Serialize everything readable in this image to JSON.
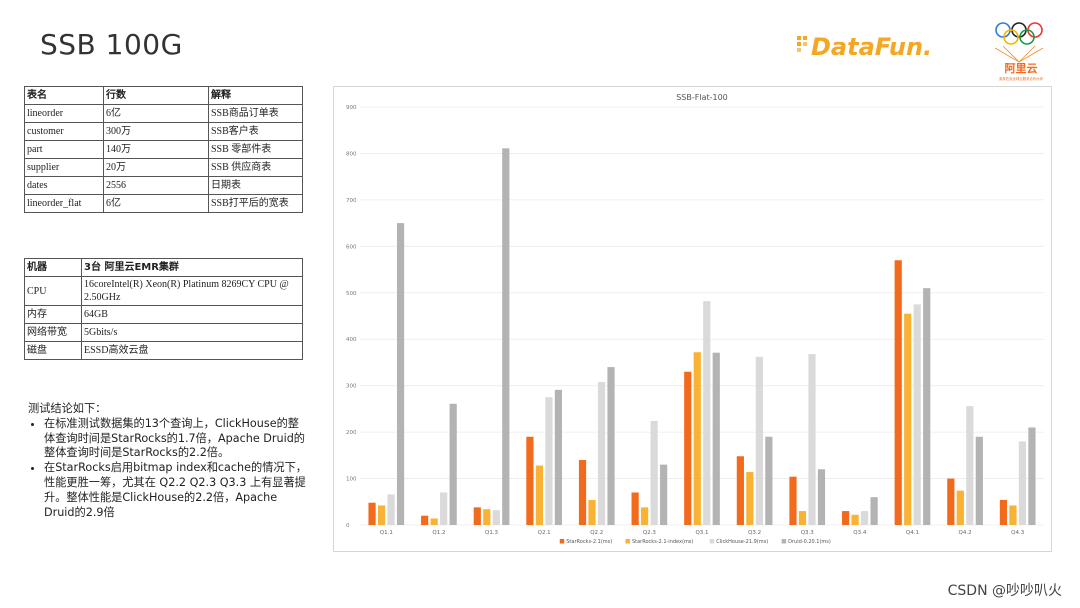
{
  "page": {
    "title": "SSB 100G",
    "watermark": "CSDN @吵吵叭火"
  },
  "logos": {
    "datafun_text": "DataFun.",
    "aliyun_text": "阿里云",
    "aliyun_subtext": "奥林匹克全球云服务合作伙伴",
    "brand_orange": "#f5a623"
  },
  "table1": {
    "headers": [
      "表名",
      "行数",
      "解释"
    ],
    "rows": [
      [
        "lineorder",
        "6亿",
        "SSB商品订单表"
      ],
      [
        "customer",
        "300万",
        "SSB客户表"
      ],
      [
        "part",
        "140万",
        "SSB 零部件表"
      ],
      [
        "supplier",
        "20万",
        "SSB 供应商表"
      ],
      [
        "dates",
        "2556",
        "日期表"
      ],
      [
        "lineorder_flat",
        "6亿",
        "SSB打平后的宽表"
      ]
    ]
  },
  "table2": {
    "headers": [
      "机器",
      "3台 阿里云EMR集群"
    ],
    "rows": [
      [
        "CPU",
        "16coreIntel(R) Xeon(R) Platinum 8269CY CPU @ 2.50GHz"
      ],
      [
        "内存",
        "64GB"
      ],
      [
        "网络带宽",
        "5Gbits/s"
      ],
      [
        "磁盘",
        "ESSD高效云盘"
      ]
    ]
  },
  "conclusion": {
    "intro": "测试结论如下：",
    "bullets": [
      "在标准测试数据集的13个查询上，ClickHouse的整体查询时间是StarRocks的1.7倍，Apache Druid的整体查询时间是StarRocks的2.2倍。",
      "在StarRocks启用bitmap index和cache的情况下，性能更胜一筹，尤其在 Q2.2 Q2.3 Q3.3 上有显著提升。整体性能是ClickHouse的2.2倍，Apache Druid的2.9倍"
    ]
  },
  "chart_data": {
    "type": "bar",
    "title": "SSB-Flat-100",
    "xlabel": "",
    "ylabel": "",
    "ylim": [
      0,
      900
    ],
    "yticks": [
      0,
      100,
      200,
      300,
      400,
      500,
      600,
      700,
      800,
      900
    ],
    "grid": true,
    "legend_position": "bottom",
    "categories": [
      "Q1.1",
      "Q1.2",
      "Q1.3",
      "Q2.1",
      "Q2.2",
      "Q2.3",
      "Q3.1",
      "Q3.2",
      "Q3.3",
      "Q3.4",
      "Q4.1",
      "Q4.2",
      "Q4.3"
    ],
    "series": [
      {
        "name": "StarRocks-2.1(ms)",
        "color": "#f26b1d",
        "values": [
          48,
          20,
          38,
          190,
          140,
          70,
          330,
          148,
          104,
          30,
          570,
          100,
          54
        ]
      },
      {
        "name": "StarRocks-2.1-index(ms)",
        "color": "#f9b233",
        "values": [
          42,
          14,
          34,
          128,
          54,
          38,
          372,
          114,
          30,
          22,
          455,
          74,
          42
        ]
      },
      {
        "name": "ClickHouse-21.9(ms)",
        "color": "#dadada",
        "values": [
          66,
          70,
          32,
          275,
          308,
          224,
          482,
          362,
          368,
          30,
          475,
          256,
          180
        ]
      },
      {
        "name": "Druid-0.20.1(ms)",
        "color": "#b3b3b3",
        "values": [
          650,
          261,
          811,
          291,
          340,
          130,
          371,
          190,
          120,
          60,
          510,
          190,
          210
        ]
      }
    ]
  }
}
